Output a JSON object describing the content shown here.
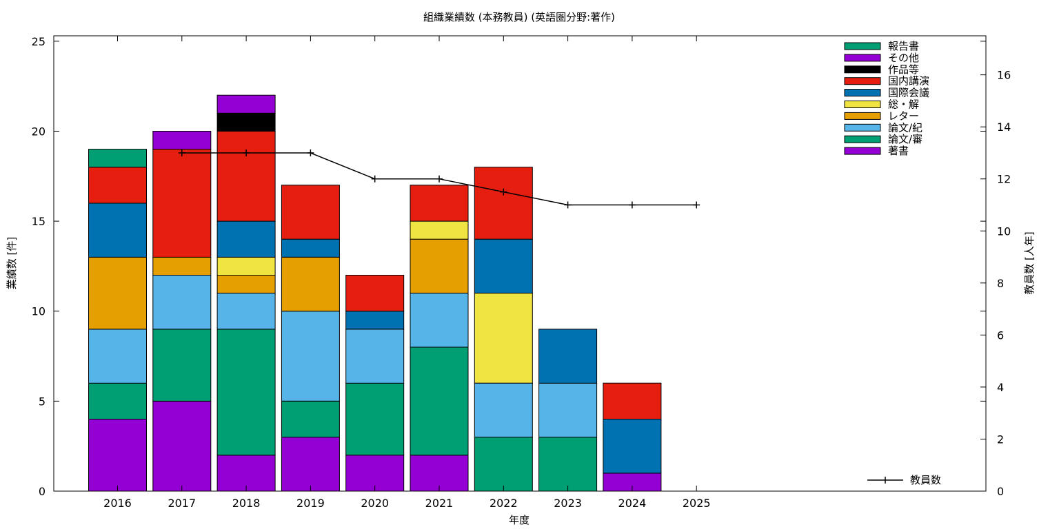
{
  "chart_data": {
    "type": "bar",
    "stacked": true,
    "title": "組織業績数 (本務教員) (英語圏分野:著作)",
    "xlabel": "年度",
    "ylabel": "業績数 [件]",
    "y2label": "教員数 [人年]",
    "ylim": [
      0,
      25.3
    ],
    "y2lim": [
      0,
      17.5
    ],
    "yticks": [
      0,
      5,
      10,
      15,
      20,
      25
    ],
    "y2ticks": [
      0,
      2,
      4,
      6,
      8,
      10,
      12,
      14,
      16
    ],
    "categories": [
      "2016",
      "2017",
      "2018",
      "2019",
      "2020",
      "2021",
      "2022",
      "2023",
      "2024",
      "2025"
    ],
    "grid": false,
    "legend_position": "top-right",
    "series": [
      {
        "name": "著書",
        "color": "#9400d3",
        "values": [
          4,
          5,
          2,
          3,
          2,
          2,
          0,
          0,
          1,
          0
        ]
      },
      {
        "name": "論文/審",
        "color": "#009e73",
        "values": [
          2,
          4,
          7,
          2,
          4,
          6,
          3,
          3,
          0,
          0
        ]
      },
      {
        "name": "論文/紀",
        "color": "#56b4e9",
        "values": [
          3,
          3,
          2,
          5,
          3,
          3,
          3,
          3,
          0,
          0
        ]
      },
      {
        "name": "レター",
        "color": "#e69f00",
        "values": [
          4,
          1,
          1,
          3,
          0,
          3,
          0,
          0,
          0,
          0
        ]
      },
      {
        "name": "総・解",
        "color": "#f0e442",
        "values": [
          0,
          0,
          1,
          0,
          0,
          1,
          5,
          0,
          0,
          0
        ]
      },
      {
        "name": "国際会議",
        "color": "#0072b2",
        "values": [
          3,
          0,
          2,
          1,
          1,
          0,
          3,
          3,
          3,
          0
        ]
      },
      {
        "name": "国内講演",
        "color": "#e51e10",
        "values": [
          2,
          6,
          5,
          3,
          2,
          2,
          4,
          0,
          2,
          0
        ]
      },
      {
        "name": "作品等",
        "color": "#000000",
        "values": [
          0,
          0,
          1,
          0,
          0,
          0,
          0,
          0,
          0,
          0
        ]
      },
      {
        "name": "その他",
        "color": "#9400d3",
        "values": [
          0,
          1,
          1,
          0,
          0,
          0,
          0,
          0,
          0,
          0
        ]
      },
      {
        "name": "報告書",
        "color": "#009e73",
        "values": [
          1,
          0,
          0,
          0,
          0,
          0,
          0,
          0,
          0,
          0
        ]
      }
    ],
    "line": {
      "name": "教員数",
      "color": "#000000",
      "axis": "y2",
      "x": [
        "2017",
        "2018",
        "2019",
        "2020",
        "2021",
        "2022",
        "2023",
        "2024",
        "2025"
      ],
      "values": [
        13,
        13,
        13,
        12,
        12,
        11.5,
        11,
        11,
        11
      ]
    }
  }
}
